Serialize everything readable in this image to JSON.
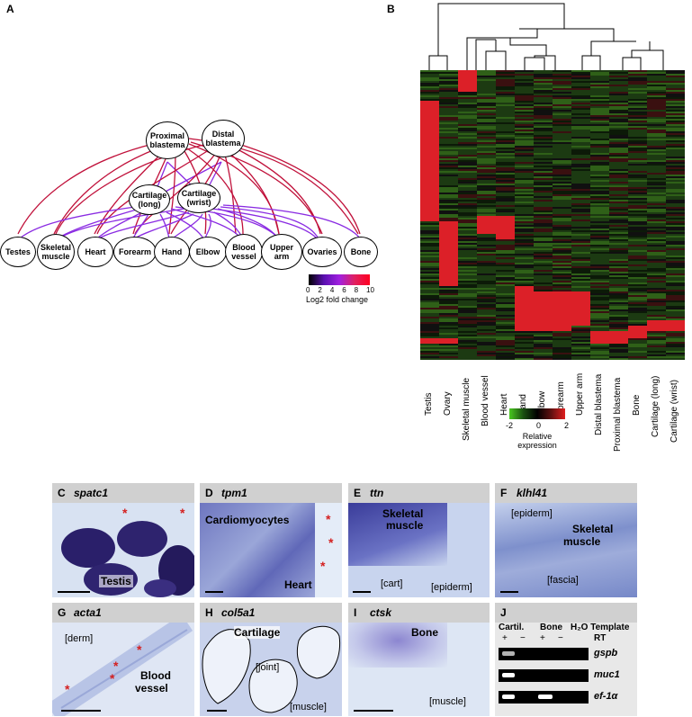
{
  "panel_a": {
    "letter": "A",
    "top_nodes": [
      "Proximal blastema",
      "Distal blastema"
    ],
    "mid_nodes": [
      "Cartilage (long)",
      "Cartilage (wrist)"
    ],
    "bottom_nodes": [
      "Testes",
      "Skeletal muscle",
      "Heart",
      "Forearm",
      "Hand",
      "Elbow",
      "Blood vessel",
      "Upper arm",
      "Ovaries",
      "Bone"
    ],
    "legend_ticks": [
      "0",
      "2",
      "4",
      "6",
      "8",
      "10"
    ],
    "legend_label": "Log2 fold change"
  },
  "panel_b": {
    "letter": "B",
    "columns": [
      "Testis",
      "Ovary",
      "Skeletal muscle",
      "Blood vessel",
      "Heart",
      "Hand",
      "Elbow",
      "Forearm",
      "Upper arm",
      "Distal blastema",
      "Proximal blastema",
      "Bone",
      "Cartilage (long)",
      "Cartilage (wrist)"
    ],
    "scale_ticks": [
      "-2",
      "0",
      "2"
    ],
    "scale_label_1": "Relative",
    "scale_label_2": "expression"
  },
  "tiles": [
    {
      "letter": "C",
      "gene": "spatc1",
      "labels": [
        "Testis"
      ]
    },
    {
      "letter": "D",
      "gene": "tpm1",
      "labels": [
        "Cardiomyocytes",
        "Heart"
      ]
    },
    {
      "letter": "E",
      "gene": "ttn",
      "labels": [
        "Skeletal",
        "muscle",
        "[cart]",
        "[epiderm]"
      ]
    },
    {
      "letter": "F",
      "gene": "klhl41",
      "labels": [
        "[epiderm]",
        "Skeletal",
        "muscle",
        "[fascia]"
      ]
    },
    {
      "letter": "G",
      "gene": "acta1",
      "labels": [
        "[derm]",
        "Blood",
        "vessel"
      ]
    },
    {
      "letter": "H",
      "gene": "col5a1",
      "labels": [
        "Cartilage",
        "[joint]",
        "[muscle]"
      ]
    },
    {
      "letter": "I",
      "gene": "ctsk",
      "labels": [
        "Bone",
        "[muscle]"
      ]
    },
    {
      "letter": "J",
      "gene": "",
      "labels": []
    }
  ],
  "gel": {
    "cartil": "Cartil.",
    "bone": "Bone",
    "h2o": "H₂O Template",
    "plus": "+",
    "minus": "−",
    "rt": "RT",
    "genes": [
      "gspb",
      "muc1",
      "ef-1α"
    ]
  },
  "colors": {
    "red": "#d42020",
    "purple": "#8a2be2",
    "stain": "#2a2a9a",
    "tissue": "#b7c6e8"
  }
}
